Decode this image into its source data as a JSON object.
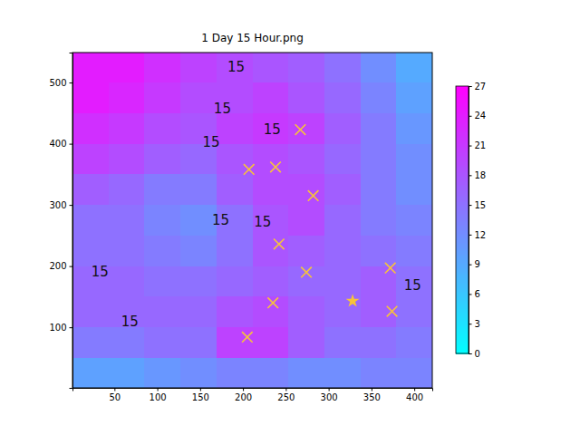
{
  "chart_data": {
    "type": "heatmap",
    "title": "1 Day 15 Hour.png",
    "xlim": [
      1,
      421
    ],
    "ylim": [
      1,
      549
    ],
    "xticks": [
      50,
      100,
      150,
      200,
      250,
      300,
      350,
      400
    ],
    "yticks": [
      100,
      200,
      300,
      400,
      500
    ],
    "x_edges": [
      1,
      43,
      85,
      127,
      169,
      211,
      253,
      295,
      337,
      379,
      421
    ],
    "y_edges": [
      1,
      51,
      101,
      151,
      201,
      251,
      301,
      351,
      401,
      451,
      501,
      549
    ],
    "values": [
      [
        10,
        10,
        11,
        12,
        13,
        13,
        12,
        12,
        13,
        13
      ],
      [
        14,
        14,
        15,
        15,
        20,
        20,
        17,
        15,
        15,
        14
      ],
      [
        16,
        16,
        16,
        16,
        18,
        19,
        17,
        16,
        17,
        15
      ],
      [
        16,
        16,
        15,
        15,
        16,
        17,
        16,
        16,
        17,
        15
      ],
      [
        15,
        15,
        14,
        13,
        15,
        18,
        17,
        16,
        15,
        14
      ],
      [
        15,
        15,
        13,
        12,
        15,
        18,
        19,
        16,
        14,
        13
      ],
      [
        17,
        16,
        14,
        14,
        17,
        19,
        19,
        17,
        14,
        12
      ],
      [
        20,
        19,
        17,
        16,
        18,
        19,
        18,
        16,
        14,
        12
      ],
      [
        22,
        21,
        19,
        18,
        20,
        21,
        20,
        17,
        14,
        11
      ],
      [
        24,
        23,
        21,
        19,
        19,
        20,
        18,
        16,
        13,
        10
      ],
      [
        24,
        24,
        22,
        20,
        19,
        18,
        17,
        15,
        12,
        9
      ]
    ],
    "colorbar": {
      "range": [
        0,
        27
      ],
      "ticks": [
        0,
        3,
        6,
        9,
        12,
        15,
        18,
        21,
        24,
        27
      ]
    },
    "series": [
      {
        "marker": "x",
        "color": "#f7c33a",
        "x": [
          267,
          207,
          238,
          282,
          242,
          274,
          235,
          372,
          374,
          205
        ],
        "y": [
          423,
          358,
          362,
          315,
          236,
          190,
          140,
          197,
          126,
          84
        ]
      },
      {
        "marker": "star",
        "color": "#f7c33a",
        "x": [
          328
        ],
        "y": [
          143
        ]
      }
    ],
    "annotations": [
      {
        "text": "15",
        "x": 192,
        "y": 524
      },
      {
        "text": "15",
        "x": 176,
        "y": 457
      },
      {
        "text": "15",
        "x": 163,
        "y": 401
      },
      {
        "text": "15",
        "x": 234,
        "y": 423
      },
      {
        "text": "15",
        "x": 174,
        "y": 275
      },
      {
        "text": "15",
        "x": 223,
        "y": 272
      },
      {
        "text": "15",
        "x": 33,
        "y": 190
      },
      {
        "text": "15",
        "x": 68,
        "y": 109
      },
      {
        "text": "15",
        "x": 398,
        "y": 168
      }
    ]
  }
}
